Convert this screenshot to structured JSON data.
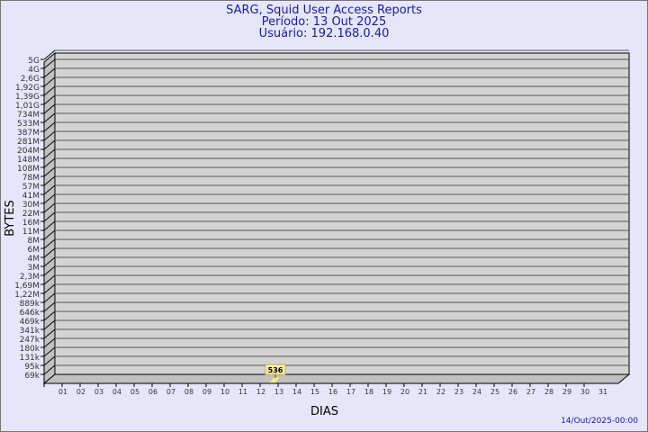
{
  "chart_data": {
    "type": "bar",
    "title": "SARG, Squid User Access Reports",
    "subtitle": [
      "Período: 13 Out 2025",
      "Usuário: 192.168.0.40"
    ],
    "xlabel": "DIAS",
    "ylabel": "BYTES",
    "y_scale": "log",
    "y_ticks": [
      "5G",
      "4G",
      "2,6G",
      "1,92G",
      "1,39G",
      "1,01G",
      "734M",
      "533M",
      "387M",
      "281M",
      "204M",
      "148M",
      "108M",
      "78M",
      "57M",
      "41M",
      "30M",
      "22M",
      "16M",
      "11M",
      "8M",
      "6M",
      "4M",
      "3M",
      "2,3M",
      "1,69M",
      "1,22M",
      "889k",
      "646k",
      "469k",
      "341k",
      "247k",
      "180k",
      "131k",
      "95k",
      "69k"
    ],
    "categories": [
      "01",
      "02",
      "03",
      "04",
      "05",
      "06",
      "07",
      "08",
      "09",
      "10",
      "11",
      "12",
      "13",
      "14",
      "15",
      "16",
      "17",
      "18",
      "19",
      "20",
      "21",
      "22",
      "23",
      "24",
      "25",
      "26",
      "27",
      "28",
      "29",
      "30",
      "31"
    ],
    "values": [
      null,
      null,
      null,
      null,
      null,
      null,
      null,
      null,
      null,
      null,
      null,
      null,
      536,
      null,
      null,
      null,
      null,
      null,
      null,
      null,
      null,
      null,
      null,
      null,
      null,
      null,
      null,
      null,
      null,
      null,
      null
    ],
    "data_labels": {
      "13": "536"
    },
    "grid": true,
    "footer": "14/Out/2025-00:00",
    "colors": {
      "wall": "#d3d3d3",
      "bar": "#f5e6a0",
      "label_bg": "#f8f0a8",
      "text": "#1a1aa0"
    }
  }
}
